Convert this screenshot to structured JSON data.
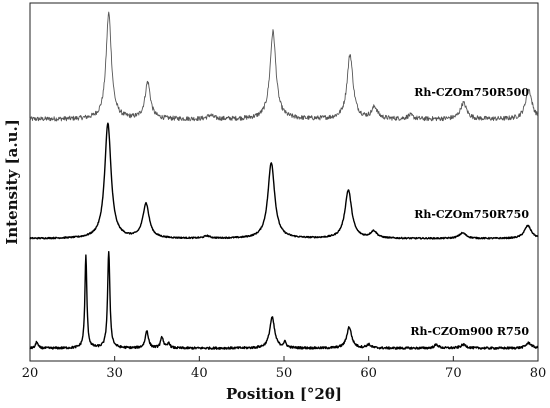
{
  "chart_data": {
    "type": "line",
    "xlabel": "Position [°2θ]",
    "ylabel": "Intensity [a.u.]",
    "xlim": [
      20,
      80
    ],
    "x_ticks": [
      20,
      30,
      40,
      50,
      60,
      70,
      80
    ],
    "y_ticks_shown": false,
    "grid": false,
    "series": [
      {
        "name": "Rh-CZOm750R500",
        "color": "#555555",
        "baseline": 0.6,
        "noise": 0.5,
        "peaks": [
          {
            "x": 29.3,
            "height": 23,
            "width": 0.38
          },
          {
            "x": 33.9,
            "height": 8,
            "width": 0.38
          },
          {
            "x": 41.3,
            "height": 0.8,
            "width": 0.4
          },
          {
            "x": 48.7,
            "height": 19,
            "width": 0.42
          },
          {
            "x": 57.8,
            "height": 14,
            "width": 0.42
          },
          {
            "x": 60.7,
            "height": 2.5,
            "width": 0.4
          },
          {
            "x": 64.9,
            "height": 0.8,
            "width": 0.4
          },
          {
            "x": 71.2,
            "height": 3.5,
            "width": 0.45
          },
          {
            "x": 78.9,
            "height": 6.5,
            "width": 0.45
          }
        ]
      },
      {
        "name": "Rh-CZOm750R750",
        "color": "#000000",
        "baseline": 0.3,
        "noise": 0.15,
        "peaks": [
          {
            "x": 29.2,
            "height": 25,
            "width": 0.45
          },
          {
            "x": 33.7,
            "height": 7.5,
            "width": 0.45
          },
          {
            "x": 40.9,
            "height": 0.5,
            "width": 0.4
          },
          {
            "x": 48.5,
            "height": 16.5,
            "width": 0.48
          },
          {
            "x": 57.6,
            "height": 10.5,
            "width": 0.48
          },
          {
            "x": 60.6,
            "height": 1.5,
            "width": 0.45
          },
          {
            "x": 71.1,
            "height": 1.2,
            "width": 0.5
          },
          {
            "x": 78.8,
            "height": 2.8,
            "width": 0.5
          }
        ]
      },
      {
        "name": "Rh-CZOm900 R750",
        "color": "#000000",
        "baseline": 0.4,
        "noise": 0.25,
        "peaks": [
          {
            "x": 20.8,
            "height": 1.5,
            "width": 0.15
          },
          {
            "x": 26.6,
            "height": 21,
            "width": 0.14
          },
          {
            "x": 29.3,
            "height": 22,
            "width": 0.16
          },
          {
            "x": 33.8,
            "height": 4,
            "width": 0.22
          },
          {
            "x": 35.6,
            "height": 2.5,
            "width": 0.2
          },
          {
            "x": 36.4,
            "height": 1.2,
            "width": 0.15
          },
          {
            "x": 48.6,
            "height": 7,
            "width": 0.35
          },
          {
            "x": 50.1,
            "height": 1.2,
            "width": 0.2
          },
          {
            "x": 57.7,
            "height": 4.8,
            "width": 0.35
          },
          {
            "x": 60.0,
            "height": 0.8,
            "width": 0.3
          },
          {
            "x": 68.0,
            "height": 0.8,
            "width": 0.3
          },
          {
            "x": 71.2,
            "height": 0.8,
            "width": 0.4
          },
          {
            "x": 78.9,
            "height": 1.2,
            "width": 0.4
          }
        ]
      }
    ]
  }
}
